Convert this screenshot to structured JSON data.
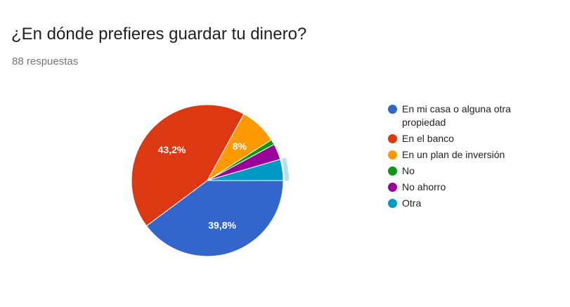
{
  "form": {
    "question": "¿En dónde prefieres guardar tu dinero?",
    "responses": "88 respuestas"
  },
  "chart_data": {
    "type": "pie",
    "title": "¿En dónde prefieres guardar tu dinero?",
    "categories": [
      "En mi casa o alguna otra propiedad",
      "En el banco",
      "En un plan de inversión",
      "No",
      "No ahorro",
      "Otra"
    ],
    "values": [
      39.8,
      43.2,
      8,
      1.1,
      3.4,
      4.5
    ],
    "labels": [
      "39,8%",
      "43,2%",
      "8%",
      "",
      "",
      ""
    ],
    "colors": [
      "#3366cc",
      "#dc3912",
      "#ff9900",
      "#109618",
      "#990099",
      "#0099c6"
    ],
    "highlighted_slice": "Otra",
    "legend_position": "right"
  }
}
